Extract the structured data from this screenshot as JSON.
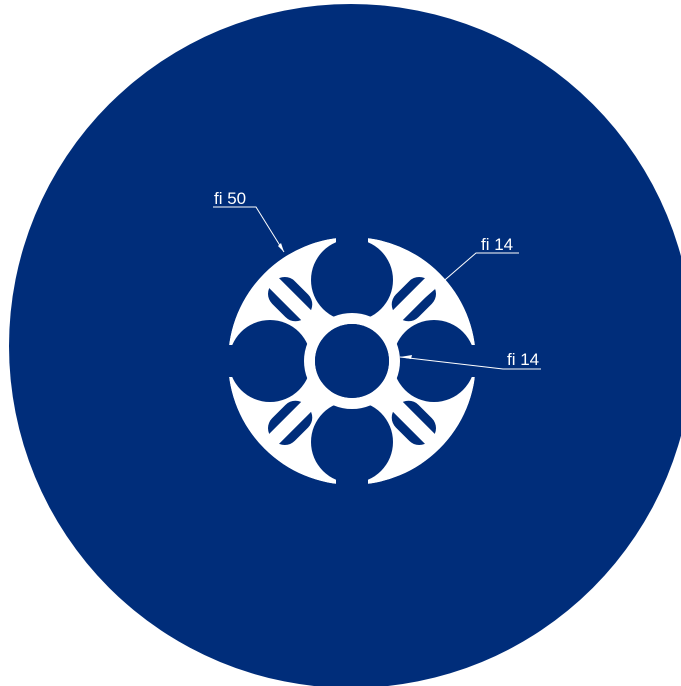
{
  "colors": {
    "background_disc": "#002d7a",
    "profile": "#ffffff",
    "annotation": "#ffffff"
  },
  "annotations": [
    {
      "id": "outer-diameter",
      "text": "fi 50"
    },
    {
      "id": "inner-lobe-diameter",
      "text": "fi 14"
    },
    {
      "id": "center-bore-diameter",
      "text": "fi 14"
    }
  ]
}
